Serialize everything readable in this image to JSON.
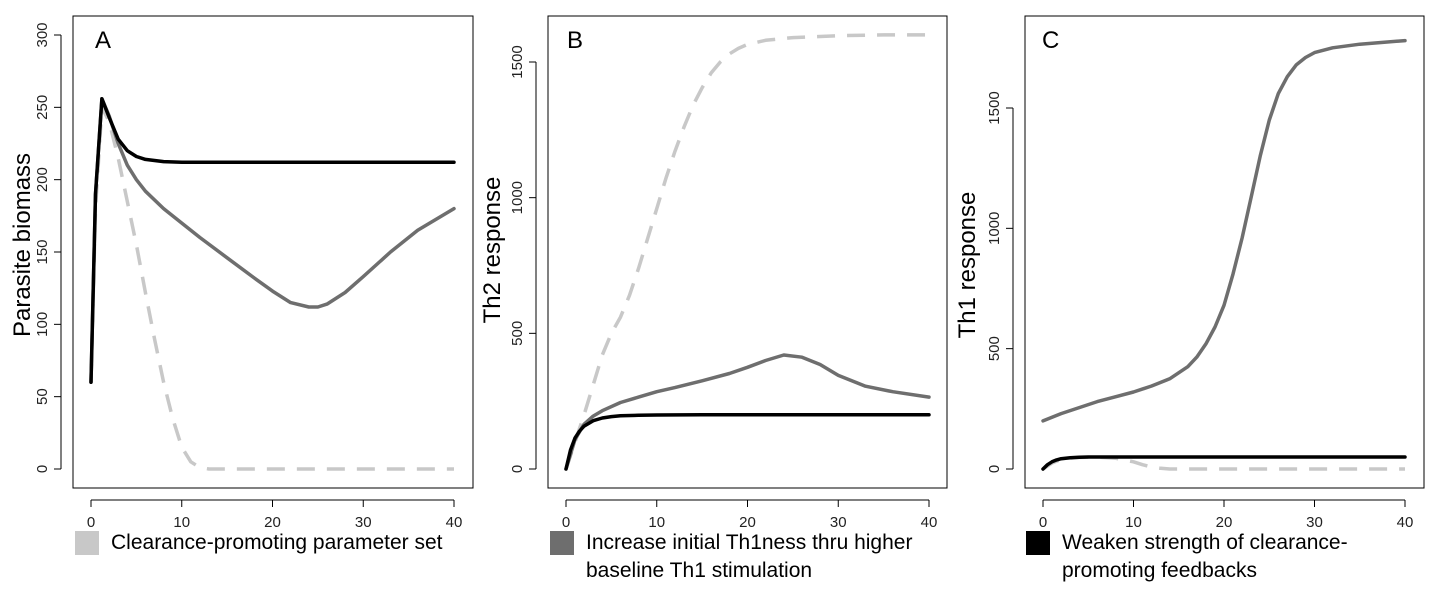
{
  "legend": [
    {
      "label": "Clearance-promoting parameter set",
      "color": "#c8c8c8"
    },
    {
      "label": "Increase initial Th1ness thru higher baseline Th1 stimulation",
      "color": "#6e6e6e"
    },
    {
      "label": "Weaken strength of clearance-promoting feedbacks",
      "color": "#000000"
    }
  ],
  "chart_data": [
    {
      "type": "line",
      "panel": "A",
      "ylabel": "Parasite biomass",
      "xlim": [
        0,
        40
      ],
      "ylim": [
        0,
        300
      ],
      "xticks": [
        0,
        10,
        20,
        30,
        40
      ],
      "yticks": [
        0,
        50,
        100,
        150,
        200,
        250,
        300
      ],
      "series": [
        {
          "color": "#c8c8c8",
          "dash": true,
          "x": [
            0,
            0.5,
            1.2,
            2,
            3,
            4,
            5,
            6,
            7,
            8,
            9,
            10,
            11,
            12,
            13,
            15,
            20,
            25,
            30,
            35,
            40
          ],
          "y": [
            60,
            180,
            250,
            240,
            215,
            185,
            155,
            122,
            90,
            60,
            35,
            15,
            5,
            1,
            0,
            0,
            0,
            0,
            0,
            0,
            0
          ]
        },
        {
          "color": "#6e6e6e",
          "dash": false,
          "x": [
            0,
            0.5,
            1.2,
            2,
            3,
            4,
            5,
            6,
            8,
            10,
            12,
            15,
            18,
            20,
            22,
            24,
            25,
            26,
            28,
            30,
            33,
            36,
            40
          ],
          "y": [
            60,
            190,
            256,
            244,
            225,
            210,
            200,
            192,
            180,
            170,
            160,
            146,
            132,
            123,
            115,
            112,
            112,
            114,
            122,
            133,
            150,
            165,
            180
          ]
        },
        {
          "color": "#000000",
          "dash": false,
          "x": [
            0,
            0.5,
            1.2,
            2,
            3,
            4,
            5,
            6,
            8,
            10,
            15,
            20,
            30,
            40
          ],
          "y": [
            60,
            190,
            256,
            243,
            228,
            220,
            216,
            214,
            212.5,
            212,
            212,
            212,
            212,
            212
          ]
        }
      ]
    },
    {
      "type": "line",
      "panel": "B",
      "ylabel": "Th2 response",
      "xlim": [
        0,
        40
      ],
      "ylim": [
        0,
        1600
      ],
      "xticks": [
        0,
        10,
        20,
        30,
        40
      ],
      "yticks": [
        0,
        500,
        1000,
        1500
      ],
      "series": [
        {
          "color": "#c8c8c8",
          "dash": true,
          "x": [
            0,
            1,
            2,
            3,
            4,
            5,
            6,
            7,
            8,
            9,
            10,
            11,
            12,
            13,
            14,
            15,
            16,
            17,
            18,
            19,
            20,
            22,
            25,
            30,
            35,
            40
          ],
          "y": [
            0,
            100,
            200,
            310,
            420,
            500,
            560,
            640,
            740,
            850,
            960,
            1070,
            1170,
            1260,
            1340,
            1405,
            1460,
            1500,
            1530,
            1550,
            1565,
            1580,
            1590,
            1597,
            1600,
            1600
          ]
        },
        {
          "color": "#6e6e6e",
          "dash": false,
          "x": [
            0,
            1,
            2,
            3,
            4,
            6,
            8,
            10,
            12,
            15,
            18,
            20,
            22,
            24,
            26,
            28,
            30,
            33,
            36,
            40
          ],
          "y": [
            0,
            110,
            165,
            195,
            215,
            245,
            265,
            285,
            300,
            325,
            352,
            375,
            400,
            420,
            412,
            385,
            345,
            305,
            285,
            265
          ]
        },
        {
          "color": "#000000",
          "dash": false,
          "x": [
            0,
            0.5,
            1,
            1.5,
            2,
            3,
            4,
            5,
            6,
            8,
            10,
            15,
            20,
            30,
            40
          ],
          "y": [
            0,
            70,
            115,
            140,
            158,
            178,
            188,
            193,
            196,
            198,
            199,
            200,
            200,
            200,
            200
          ]
        }
      ]
    },
    {
      "type": "line",
      "panel": "C",
      "ylabel": "Th1 response",
      "xlim": [
        0,
        40
      ],
      "ylim": [
        0,
        1800
      ],
      "xticks": [
        0,
        10,
        20,
        30,
        40
      ],
      "yticks": [
        0,
        500,
        1000,
        1500
      ],
      "series": [
        {
          "color": "#c8c8c8",
          "dash": true,
          "x": [
            0,
            1,
            2,
            3,
            4,
            6,
            8,
            10,
            11,
            12,
            13,
            14,
            15,
            20,
            30,
            40
          ],
          "y": [
            0,
            25,
            40,
            45,
            48,
            50,
            45,
            30,
            18,
            8,
            3,
            0,
            0,
            0,
            0,
            0
          ]
        },
        {
          "color": "#6e6e6e",
          "dash": false,
          "x": [
            0,
            2,
            4,
            6,
            8,
            10,
            12,
            14,
            16,
            17,
            18,
            19,
            20,
            21,
            22,
            23,
            24,
            25,
            26,
            27,
            28,
            29,
            30,
            32,
            35,
            40
          ],
          "y": [
            200,
            230,
            255,
            280,
            300,
            320,
            345,
            375,
            425,
            465,
            520,
            590,
            680,
            810,
            960,
            1130,
            1300,
            1450,
            1560,
            1630,
            1680,
            1710,
            1730,
            1750,
            1765,
            1780
          ]
        },
        {
          "color": "#000000",
          "dash": false,
          "x": [
            0,
            0.5,
            1,
            1.5,
            2,
            3,
            4,
            5,
            6,
            8,
            10,
            20,
            30,
            40
          ],
          "y": [
            0,
            18,
            30,
            38,
            43,
            47,
            49,
            50,
            50,
            50,
            50,
            50,
            50,
            50
          ]
        }
      ]
    }
  ]
}
